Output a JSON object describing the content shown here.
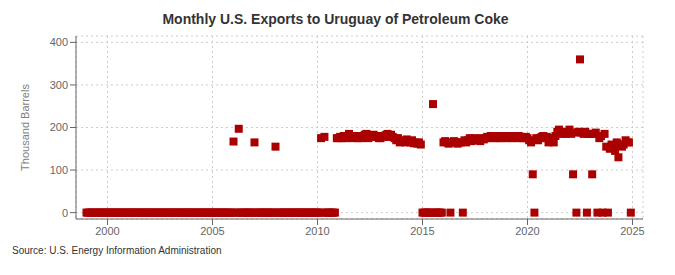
{
  "chart_data": {
    "type": "scatter",
    "title": "Monthly U.S. Exports to Uruguay of Petroleum Coke",
    "ylabel": "Thousand Barrels",
    "annotations": [
      "Source: U.S. Energy Information Administration"
    ],
    "color": "#aa0000",
    "marker": "square",
    "grid": true,
    "xlim": [
      1998.5,
      2025.5
    ],
    "ylim": [
      -15,
      415
    ],
    "xticks": [
      2000,
      2005,
      2010,
      2015,
      2020,
      2025
    ],
    "yticks": [
      0,
      100,
      200,
      300,
      400
    ],
    "x": [
      1999.0,
      1999.08,
      1999.17,
      1999.25,
      1999.33,
      1999.42,
      1999.5,
      1999.58,
      1999.67,
      1999.75,
      1999.83,
      1999.92,
      2000.0,
      2000.08,
      2000.17,
      2000.25,
      2000.33,
      2000.42,
      2000.5,
      2000.58,
      2000.67,
      2000.75,
      2000.83,
      2000.92,
      2001.0,
      2001.08,
      2001.17,
      2001.25,
      2001.33,
      2001.42,
      2001.5,
      2001.58,
      2001.67,
      2001.75,
      2001.83,
      2001.92,
      2002.0,
      2002.08,
      2002.17,
      2002.25,
      2002.33,
      2002.42,
      2002.5,
      2002.58,
      2002.67,
      2002.75,
      2002.83,
      2002.92,
      2003.0,
      2003.08,
      2003.17,
      2003.25,
      2003.33,
      2003.42,
      2003.5,
      2003.58,
      2003.67,
      2003.75,
      2003.83,
      2003.92,
      2004.0,
      2004.08,
      2004.17,
      2004.25,
      2004.33,
      2004.42,
      2004.5,
      2004.58,
      2004.67,
      2004.75,
      2004.83,
      2004.92,
      2005.0,
      2005.08,
      2005.17,
      2005.25,
      2005.33,
      2005.42,
      2005.5,
      2005.58,
      2005.67,
      2005.75,
      2005.83,
      2005.92,
      2006.0,
      2006.08,
      2006.17,
      2006.25,
      2006.33,
      2006.42,
      2006.5,
      2006.58,
      2006.67,
      2006.75,
      2006.83,
      2006.92,
      2007.0,
      2007.08,
      2007.17,
      2007.25,
      2007.33,
      2007.42,
      2007.5,
      2007.58,
      2007.67,
      2007.75,
      2007.83,
      2007.92,
      2008.0,
      2008.08,
      2008.17,
      2008.25,
      2008.33,
      2008.42,
      2008.5,
      2008.58,
      2008.67,
      2008.75,
      2008.83,
      2008.92,
      2009.0,
      2009.08,
      2009.17,
      2009.25,
      2009.33,
      2009.42,
      2009.5,
      2009.58,
      2009.67,
      2009.75,
      2009.83,
      2009.92,
      2010.0,
      2010.08,
      2010.17,
      2010.25,
      2010.33,
      2010.42,
      2010.5,
      2010.58,
      2010.67,
      2010.75,
      2010.83,
      2010.92,
      2011.0,
      2011.08,
      2011.17,
      2011.25,
      2011.33,
      2011.42,
      2011.5,
      2011.58,
      2011.67,
      2011.75,
      2011.83,
      2011.92,
      2012.0,
      2012.08,
      2012.17,
      2012.25,
      2012.33,
      2012.42,
      2012.5,
      2012.58,
      2012.67,
      2012.75,
      2012.83,
      2012.92,
      2013.0,
      2013.08,
      2013.17,
      2013.25,
      2013.33,
      2013.42,
      2013.5,
      2013.58,
      2013.67,
      2013.75,
      2013.83,
      2013.92,
      2014.0,
      2014.08,
      2014.17,
      2014.25,
      2014.33,
      2014.42,
      2014.5,
      2014.58,
      2014.67,
      2014.75,
      2014.83,
      2014.92,
      2015.0,
      2015.08,
      2015.17,
      2015.25,
      2015.33,
      2015.42,
      2015.5,
      2015.58,
      2015.67,
      2015.75,
      2015.83,
      2015.92,
      2016.0,
      2016.08,
      2016.17,
      2016.25,
      2016.33,
      2016.42,
      2016.5,
      2016.58,
      2016.67,
      2016.75,
      2016.83,
      2016.92,
      2017.0,
      2017.08,
      2017.17,
      2017.25,
      2017.33,
      2017.42,
      2017.5,
      2017.58,
      2017.67,
      2017.75,
      2017.83,
      2017.92,
      2018.0,
      2018.08,
      2018.17,
      2018.25,
      2018.33,
      2018.42,
      2018.5,
      2018.58,
      2018.67,
      2018.75,
      2018.83,
      2018.92,
      2019.0,
      2019.08,
      2019.17,
      2019.25,
      2019.33,
      2019.42,
      2019.5,
      2019.58,
      2019.67,
      2019.75,
      2019.83,
      2019.92,
      2020.0,
      2020.08,
      2020.17,
      2020.25,
      2020.33,
      2020.42,
      2020.5,
      2020.58,
      2020.67,
      2020.75,
      2020.83,
      2020.92,
      2021.0,
      2021.08,
      2021.17,
      2021.25,
      2021.33,
      2021.42,
      2021.5,
      2021.58,
      2021.67,
      2021.75,
      2021.83,
      2021.92,
      2022.0,
      2022.08,
      2022.17,
      2022.25,
      2022.33,
      2022.42,
      2022.5,
      2022.58,
      2022.67,
      2022.75,
      2022.83,
      2022.92,
      2023.0,
      2023.08,
      2023.17,
      2023.25,
      2023.33,
      2023.42,
      2023.5,
      2023.58,
      2023.67,
      2023.75,
      2023.83,
      2023.92,
      2024.0,
      2024.08,
      2024.17,
      2024.25,
      2024.33,
      2024.42,
      2024.5,
      2024.58,
      2024.67,
      2024.75,
      2024.83,
      2024.92
    ],
    "values": [
      0,
      0,
      0,
      0,
      0,
      0,
      0,
      0,
      0,
      0,
      0,
      0,
      0,
      0,
      0,
      0,
      0,
      0,
      0,
      0,
      0,
      0,
      0,
      0,
      0,
      0,
      0,
      0,
      0,
      0,
      0,
      0,
      0,
      0,
      0,
      0,
      0,
      0,
      0,
      0,
      0,
      0,
      0,
      0,
      0,
      0,
      0,
      0,
      0,
      0,
      0,
      0,
      0,
      0,
      0,
      0,
      0,
      0,
      0,
      0,
      0,
      0,
      0,
      0,
      0,
      0,
      0,
      0,
      0,
      0,
      0,
      0,
      0,
      0,
      0,
      0,
      0,
      0,
      0,
      0,
      0,
      0,
      0,
      0,
      167,
      0,
      0,
      197,
      0,
      0,
      0,
      0,
      0,
      0,
      0,
      0,
      165,
      0,
      0,
      0,
      0,
      0,
      0,
      0,
      0,
      0,
      0,
      0,
      155,
      0,
      0,
      0,
      0,
      0,
      0,
      0,
      0,
      0,
      0,
      0,
      0,
      0,
      0,
      0,
      0,
      0,
      0,
      0,
      0,
      0,
      0,
      0,
      0,
      0,
      175,
      0,
      178,
      0,
      0,
      0,
      0,
      0,
      0,
      175,
      175,
      178,
      175,
      180,
      175,
      180,
      185,
      178,
      175,
      180,
      180,
      175,
      178,
      175,
      180,
      183,
      185,
      175,
      180,
      178,
      183,
      180,
      178,
      175,
      175,
      180,
      178,
      182,
      185,
      178,
      183,
      178,
      175,
      170,
      175,
      165,
      168,
      170,
      165,
      172,
      168,
      165,
      170,
      163,
      165,
      162,
      165,
      160,
      0,
      0,
      0,
      0,
      0,
      0,
      255,
      0,
      0,
      0,
      0,
      0,
      165,
      168,
      165,
      162,
      0,
      165,
      168,
      165,
      162,
      165,
      165,
      0,
      170,
      165,
      170,
      175,
      168,
      172,
      175,
      170,
      172,
      168,
      175,
      172,
      175,
      178,
      175,
      180,
      178,
      175,
      180,
      175,
      178,
      175,
      180,
      178,
      175,
      178,
      180,
      175,
      180,
      178,
      175,
      180,
      178,
      175,
      175,
      178,
      175,
      170,
      165,
      90,
      0,
      175,
      170,
      175,
      178,
      180,
      175,
      178,
      165,
      170,
      175,
      165,
      180,
      190,
      195,
      190,
      185,
      188,
      185,
      190,
      195,
      185,
      90,
      188,
      0,
      190,
      360,
      188,
      185,
      190,
      0,
      185,
      185,
      90,
      185,
      188,
      0,
      175,
      180,
      0,
      185,
      155,
      0,
      150,
      160,
      155,
      145,
      165,
      130,
      160,
      155,
      160,
      170,
      165,
      165,
      0
    ]
  }
}
